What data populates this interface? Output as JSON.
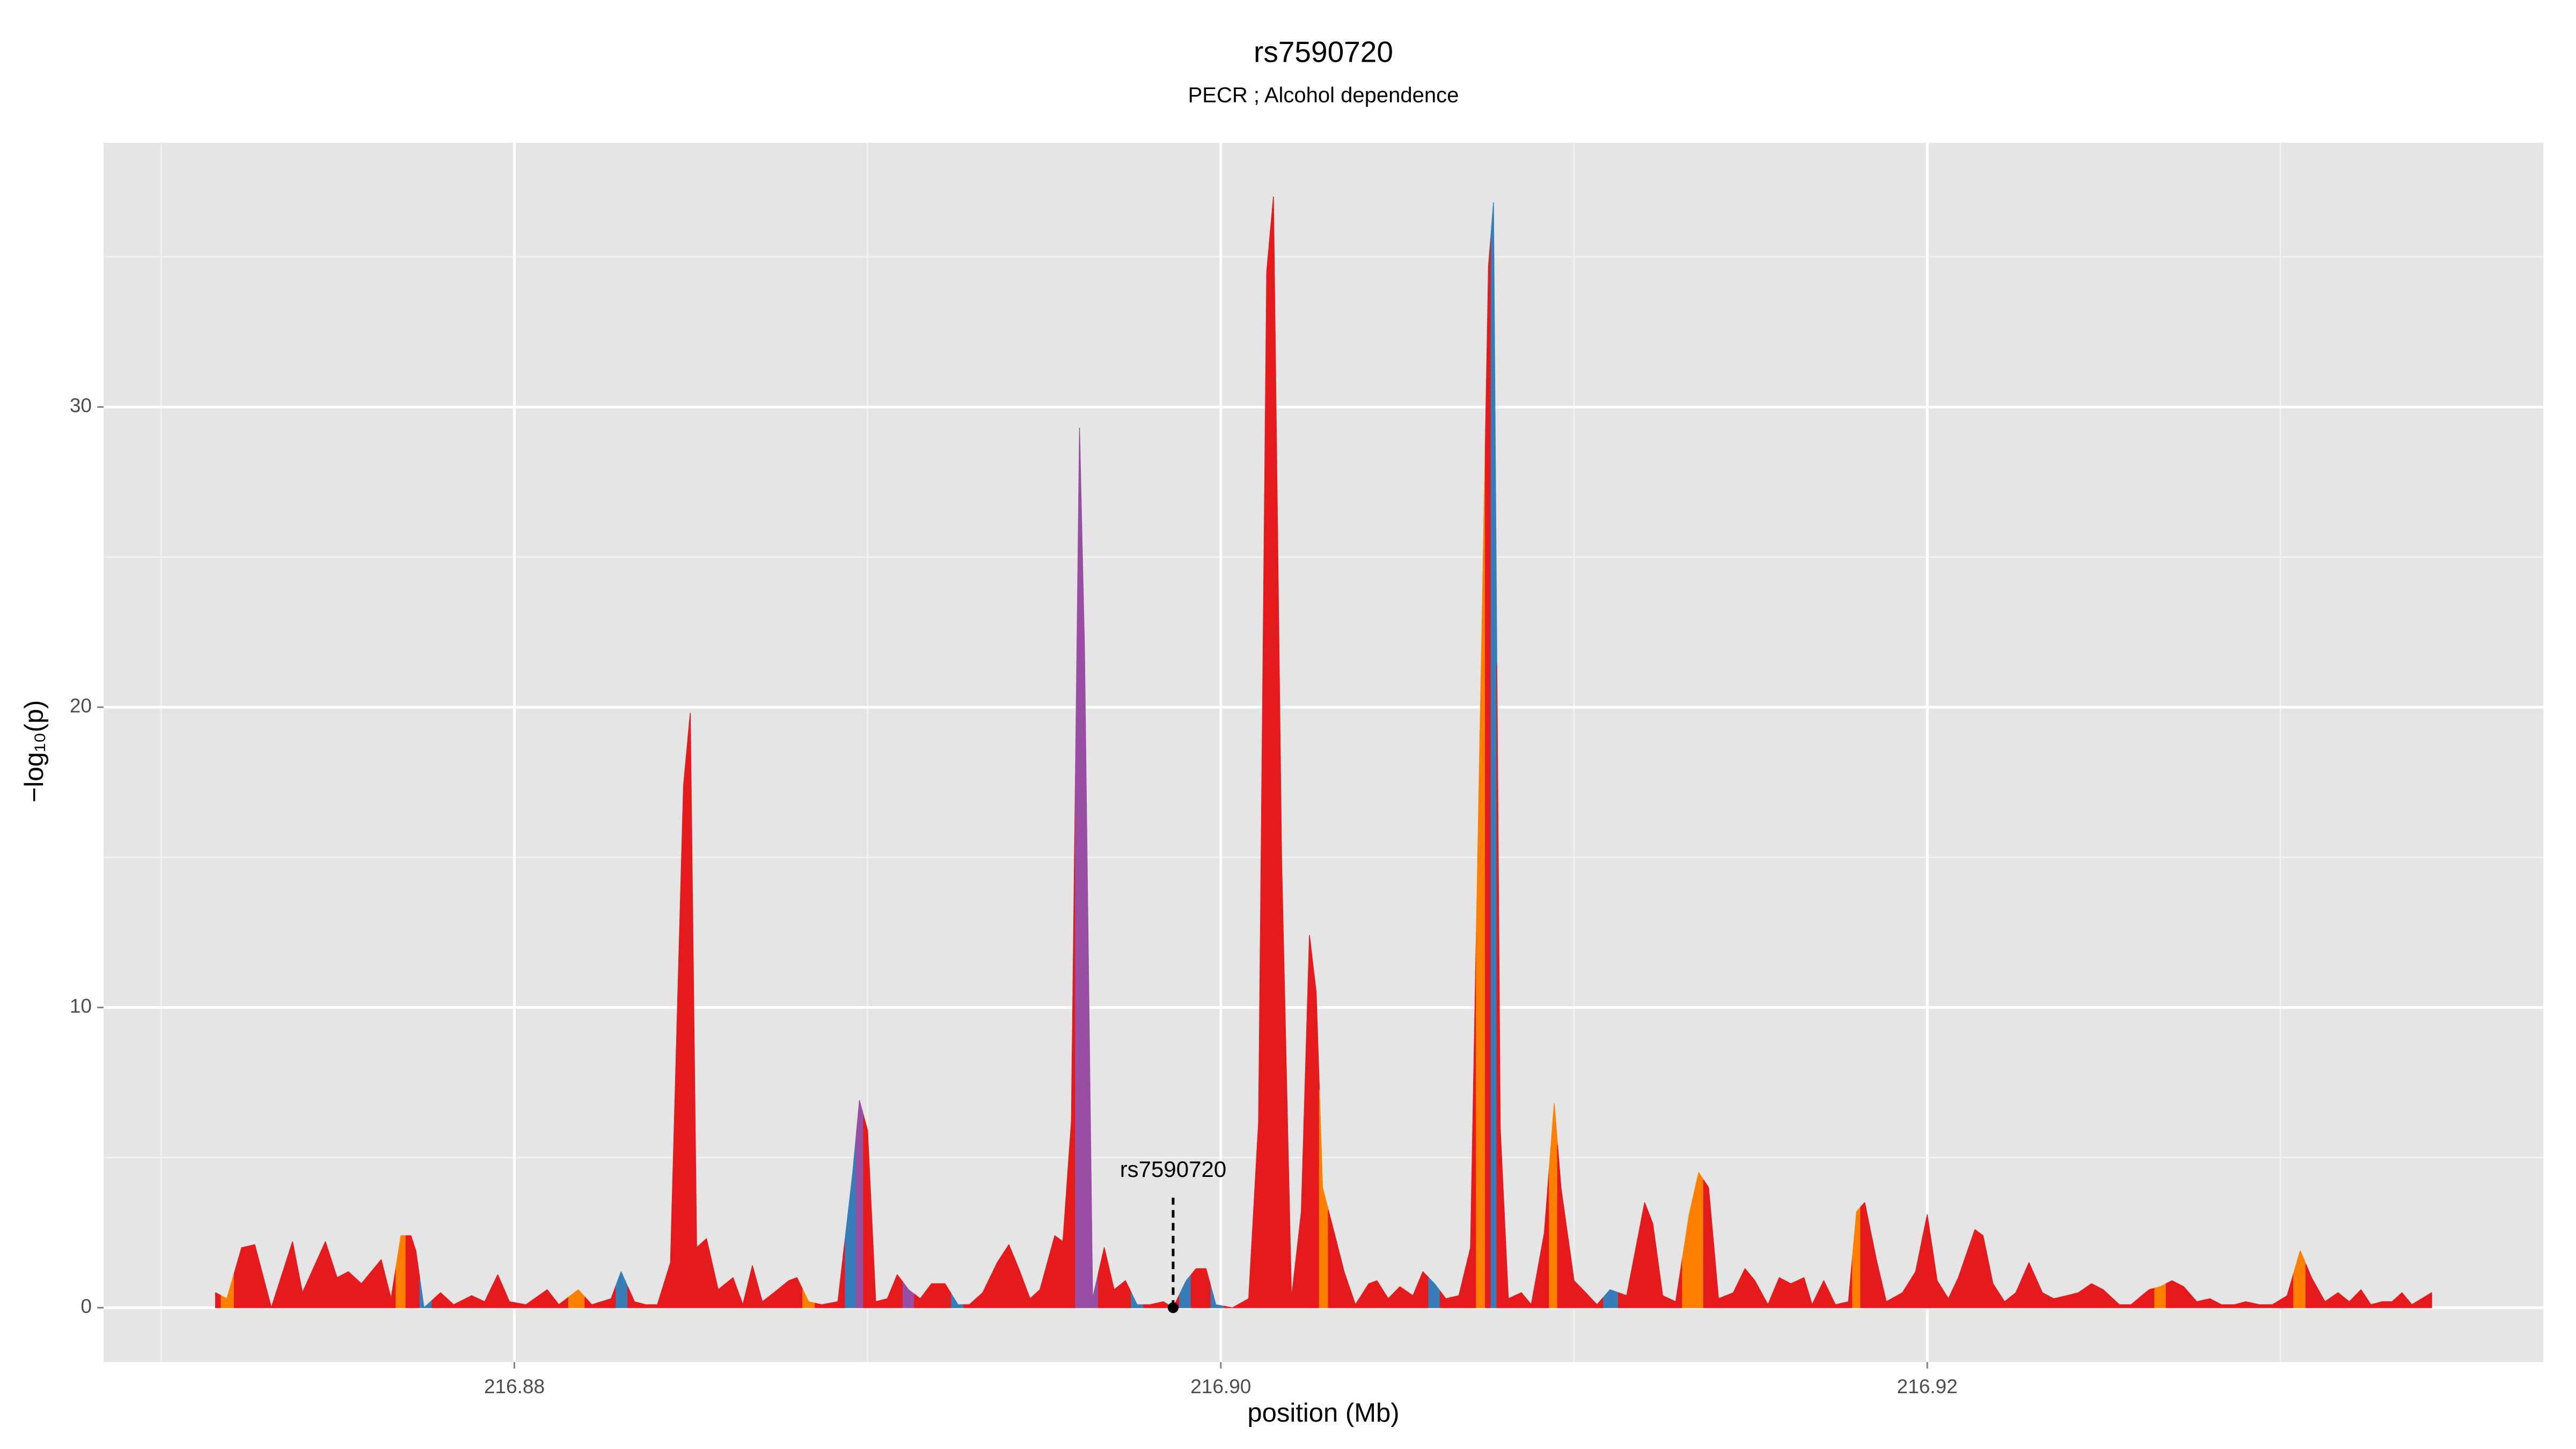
{
  "chart_data": {
    "type": "area",
    "title": "rs7590720",
    "subtitle": "PECR ; Alcohol dependence",
    "x_label": "position (Mb)",
    "y_label": "−log₁₀(p)",
    "xlim": [
      216.86837,
      216.93744
    ],
    "ylim": [
      -1.81,
      38.8
    ],
    "xticks": [
      216.88,
      {
        "value": 216.9,
        "label": "216.90"
      },
      216.92
    ],
    "yticks": [
      0,
      10,
      20,
      30
    ],
    "x_minor_grid": [
      216.87,
      216.89,
      216.91,
      216.93
    ],
    "y_minor_grid": [
      5,
      15,
      25,
      35
    ],
    "grid": true,
    "palette": [
      "#e41a1c",
      "#ff7f00",
      "#377eb8",
      "#984ea3"
    ],
    "x": [
      216.87154,
      216.87186,
      216.87228,
      216.87265,
      216.87312,
      216.87372,
      216.874,
      216.87465,
      216.87498,
      216.8753,
      216.87567,
      216.87623,
      216.87651,
      216.87679,
      216.87707,
      216.87721,
      216.87744,
      216.87791,
      216.87828,
      216.87879,
      216.87916,
      216.87953,
      216.87986,
      216.88033,
      216.88093,
      216.88126,
      216.88181,
      216.88219,
      216.88274,
      216.88302,
      216.8834,
      216.88372,
      216.88405,
      216.88442,
      216.88479,
      216.88498,
      216.88516,
      216.88544,
      216.88577,
      216.88619,
      216.88647,
      216.88674,
      216.88702,
      216.88735,
      216.88777,
      216.888,
      216.88833,
      216.8887,
      216.88916,
      216.88958,
      216.88977,
      216.89,
      216.89023,
      216.89056,
      216.89084,
      216.89116,
      216.89149,
      216.89181,
      216.89219,
      216.89256,
      216.89288,
      216.89326,
      216.89367,
      216.894,
      216.89428,
      216.8946,
      216.89488,
      216.8953,
      216.89553,
      216.89577,
      216.896,
      216.89614,
      216.89637,
      216.8967,
      216.89698,
      216.8973,
      216.89763,
      216.898,
      216.89837,
      216.89865,
      216.89902,
      216.8993,
      216.89958,
      216.89986,
      216.90033,
      216.90079,
      216.90107,
      216.9013,
      216.90149,
      216.90172,
      216.902,
      216.90228,
      216.90251,
      216.9027,
      216.90288,
      216.90321,
      216.90349,
      216.90381,
      216.90419,
      216.90442,
      216.90474,
      216.90507,
      216.90544,
      216.90572,
      216.90605,
      216.90637,
      216.90674,
      216.90707,
      216.9074,
      216.90758,
      216.90772,
      216.90791,
      216.90814,
      216.90851,
      216.90879,
      216.90916,
      216.90944,
      216.90963,
      216.91,
      216.91033,
      216.91065,
      216.91102,
      216.91149,
      216.912,
      216.91223,
      216.91251,
      216.91288,
      216.91326,
      216.91353,
      216.91381,
      216.91409,
      216.91451,
      216.91484,
      216.91512,
      216.91549,
      216.91581,
      216.91614,
      216.91651,
      216.91674,
      216.91707,
      216.9174,
      216.91777,
      216.918,
      216.91823,
      216.91856,
      216.91884,
      216.9193,
      216.91967,
      216.92,
      216.92028,
      216.9206,
      216.92088,
      216.92135,
      216.92158,
      216.92186,
      216.92219,
      216.92251,
      216.92288,
      216.92326,
      216.92358,
      216.92395,
      216.92428,
      216.92465,
      216.92498,
      216.92544,
      216.92577,
      216.92628,
      216.9266,
      216.92693,
      216.92726,
      216.92763,
      216.928,
      216.92833,
      216.9287,
      216.92902,
      216.9294,
      216.92977,
      216.93019,
      216.93056,
      216.93088,
      216.93126,
      216.93163,
      216.93195,
      216.93228,
      216.93256,
      216.93288,
      216.93316,
      216.93344,
      216.93372,
      216.93428
    ],
    "values": [
      0.5,
      0.3,
      2.0,
      2.1,
      0,
      2.2,
      0.5,
      2.2,
      1.0,
      1.2,
      0.8,
      1.6,
      0.3,
      2.4,
      2.4,
      1.9,
      0,
      0.5,
      0.1,
      0.4,
      0.2,
      1.1,
      0.2,
      0.1,
      0.6,
      0.1,
      0.6,
      0.1,
      0.3,
      1.2,
      0.2,
      0.1,
      0.1,
      1.5,
      17.4,
      19.8,
      2.0,
      2.3,
      0.6,
      1.0,
      0.1,
      1.4,
      0.2,
      0.5,
      0.9,
      1.0,
      0.2,
      0.1,
      0.2,
      4.5,
      6.9,
      5.9,
      0.2,
      0.3,
      1.1,
      0.6,
      0.3,
      0.8,
      0.8,
      0.1,
      0.1,
      0.5,
      1.5,
      2.1,
      1.3,
      0.3,
      0.6,
      2.4,
      2.2,
      6.2,
      29.3,
      22,
      0.3,
      2.0,
      0.6,
      0.9,
      0.1,
      0.1,
      0.2,
      0,
      0.9,
      1.3,
      1.3,
      0.1,
      0,
      0.3,
      6.2,
      34.5,
      37.0,
      15,
      0.3,
      3.2,
      12.4,
      10.5,
      4.0,
      2.5,
      1.2,
      0.1,
      0.8,
      0.9,
      0.3,
      0.7,
      0.4,
      1.2,
      0.8,
      0.3,
      0.4,
      2.0,
      23,
      34.7,
      36.8,
      6.0,
      0.3,
      0.5,
      0.1,
      2.5,
      6.8,
      4.0,
      0.9,
      0.5,
      0.1,
      0.6,
      0.4,
      3.5,
      2.8,
      0.4,
      0.2,
      3.1,
      4.5,
      4.0,
      0.3,
      0.5,
      1.3,
      0.9,
      0.1,
      1.0,
      0.8,
      1.0,
      0.1,
      0.9,
      0.1,
      0.2,
      3.2,
      3.5,
      1.6,
      0.2,
      0.5,
      1.2,
      3.1,
      0.9,
      0.3,
      1.0,
      2.6,
      2.4,
      0.8,
      0.2,
      0.5,
      1.5,
      0.5,
      0.3,
      0.4,
      0.5,
      0.8,
      0.6,
      0.1,
      0.1,
      0.6,
      0.7,
      0.9,
      0.7,
      0.2,
      0.3,
      0.1,
      0.1,
      0.2,
      0.1,
      0.1,
      0.4,
      1.9,
      1.0,
      0.2,
      0.5,
      0.2,
      0.6,
      0.1,
      0.2,
      0.2,
      0.5,
      0.1,
      0.5
    ],
    "color_index": [
      0,
      1,
      0,
      0,
      0,
      0,
      0,
      0,
      0,
      0,
      0,
      0,
      0,
      1,
      0,
      0,
      2,
      0,
      0,
      0,
      0,
      0,
      0,
      0,
      0,
      0,
      1,
      0,
      0,
      2,
      0,
      0,
      0,
      0,
      0,
      0,
      0,
      0,
      0,
      0,
      0,
      0,
      0,
      0,
      0,
      0,
      1,
      0,
      0,
      2,
      3,
      0,
      0,
      0,
      0,
      3,
      0,
      0,
      0,
      2,
      0,
      0,
      0,
      0,
      0,
      0,
      0,
      0,
      0,
      0,
      3,
      3,
      3,
      0,
      0,
      0,
      2,
      0,
      0,
      0,
      2,
      0,
      0,
      2,
      0,
      0,
      0,
      0,
      0,
      0,
      0,
      0,
      0,
      0,
      1,
      0,
      0,
      0,
      0,
      0,
      0,
      0,
      0,
      0,
      2,
      0,
      0,
      0,
      1,
      0,
      2,
      0,
      0,
      0,
      0,
      0,
      1,
      0,
      0,
      0,
      0,
      2,
      0,
      0,
      0,
      0,
      0,
      1,
      1,
      0,
      0,
      0,
      0,
      0,
      0,
      0,
      0,
      0,
      0,
      0,
      0,
      0,
      1,
      0,
      0,
      0,
      0,
      0,
      0,
      0,
      0,
      0,
      0,
      0,
      0,
      0,
      0,
      0,
      0,
      0,
      0,
      0,
      0,
      0,
      0,
      0,
      0,
      1,
      0,
      0,
      0,
      0,
      0,
      0,
      0,
      0,
      0,
      0,
      1,
      0,
      0,
      0,
      0,
      0,
      0,
      0,
      0,
      0,
      0,
      0
    ],
    "annotation": {
      "text": "rs7590720",
      "x": 216.89865,
      "y": 0
    }
  }
}
